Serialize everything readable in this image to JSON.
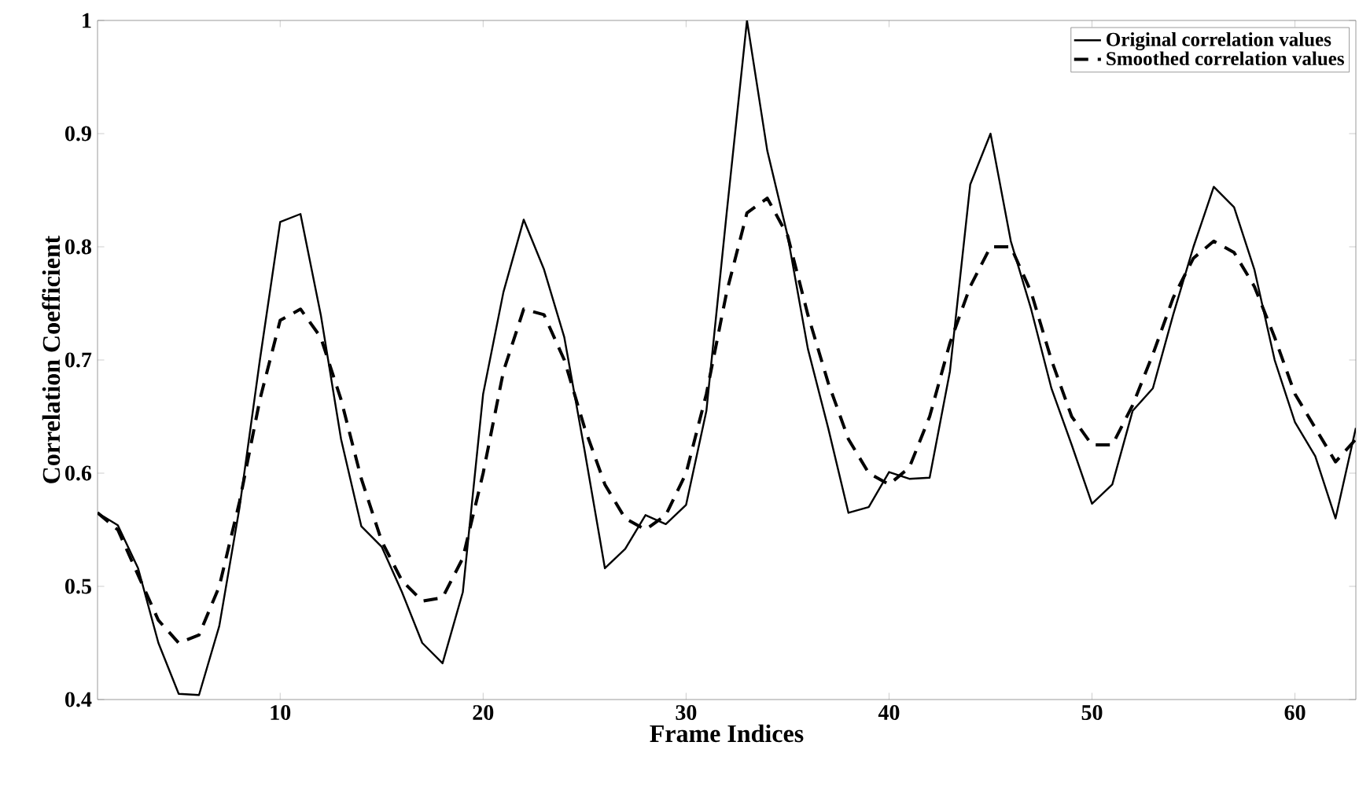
{
  "chart_data": {
    "type": "line",
    "xlabel": "Frame Indices",
    "ylabel": "Correlation Coefficient",
    "x": [
      1,
      2,
      3,
      4,
      5,
      6,
      7,
      8,
      9,
      10,
      11,
      12,
      13,
      14,
      15,
      16,
      17,
      18,
      19,
      20,
      21,
      22,
      23,
      24,
      25,
      26,
      27,
      28,
      29,
      30,
      31,
      32,
      33,
      34,
      35,
      36,
      37,
      38,
      39,
      40,
      41,
      42,
      43,
      44,
      45,
      46,
      47,
      48,
      49,
      50,
      51,
      52,
      53,
      54,
      55,
      56,
      57,
      58,
      59,
      60,
      61,
      62,
      63
    ],
    "series": [
      {
        "name": "Original correlation values",
        "color": "#000000",
        "line_style": "solid",
        "values": [
          0.565,
          0.554,
          0.516,
          0.45,
          0.405,
          0.404,
          0.465,
          0.57,
          0.7,
          0.822,
          0.829,
          0.74,
          0.63,
          0.553,
          0.535,
          0.495,
          0.45,
          0.432,
          0.495,
          0.67,
          0.76,
          0.824,
          0.78,
          0.72,
          0.62,
          0.516,
          0.533,
          0.563,
          0.555,
          0.572,
          0.655,
          0.83,
          1.0,
          0.885,
          0.81,
          0.71,
          0.64,
          0.565,
          0.57,
          0.601,
          0.595,
          0.596,
          0.69,
          0.855,
          0.9,
          0.805,
          0.745,
          0.675,
          0.625,
          0.573,
          0.59,
          0.655,
          0.675,
          0.74,
          0.8,
          0.853,
          0.835,
          0.78,
          0.7,
          0.645,
          0.615,
          0.56,
          0.64
        ]
      },
      {
        "name": "Smoothed correlation values",
        "color": "#000000",
        "line_style": "dashed",
        "values": [
          0.565,
          0.55,
          0.51,
          0.47,
          0.45,
          0.457,
          0.5,
          0.575,
          0.665,
          0.735,
          0.745,
          0.72,
          0.665,
          0.595,
          0.54,
          0.505,
          0.487,
          0.49,
          0.525,
          0.6,
          0.69,
          0.745,
          0.74,
          0.7,
          0.64,
          0.59,
          0.56,
          0.55,
          0.563,
          0.6,
          0.67,
          0.76,
          0.83,
          0.843,
          0.81,
          0.74,
          0.68,
          0.63,
          0.6,
          0.59,
          0.605,
          0.65,
          0.715,
          0.765,
          0.8,
          0.8,
          0.76,
          0.7,
          0.65,
          0.625,
          0.625,
          0.66,
          0.705,
          0.755,
          0.79,
          0.805,
          0.795,
          0.765,
          0.72,
          0.67,
          0.64,
          0.61,
          0.63
        ]
      }
    ],
    "xlim": [
      1,
      63
    ],
    "ylim": [
      0.4,
      1
    ],
    "xticks": [
      10,
      20,
      30,
      40,
      50,
      60
    ],
    "yticks": [
      {
        "value": 0.4,
        "label": "0.4"
      },
      {
        "value": 0.5,
        "label": "0.5"
      },
      {
        "value": 0.6,
        "label": "0.6"
      },
      {
        "value": 0.7,
        "label": "0.7"
      },
      {
        "value": 0.8,
        "label": "0.8"
      },
      {
        "value": 0.9,
        "label": "0.9"
      },
      {
        "value": 1,
        "label": "1"
      }
    ],
    "legend": "top right",
    "grid": false
  }
}
